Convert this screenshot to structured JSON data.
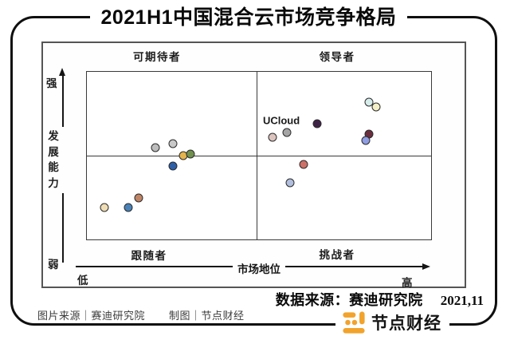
{
  "title": "2021H1中国混合云市场竞争格局",
  "chart_data": {
    "type": "scatter",
    "title": "2021H1中国混合云市场竞争格局",
    "xlabel": "市场地位",
    "ylabel": "发展能力",
    "x_axis": {
      "min_label": "低",
      "max_label": "高"
    },
    "y_axis": {
      "min_label": "弱",
      "max_label": "强"
    },
    "quadrants": {
      "top_left": "可期待者",
      "top_right": "领导者",
      "bottom_left": "跟随者",
      "bottom_right": "挑战者"
    },
    "axis_note": "qualitative axes; point coordinates normalized 0-100 (x: market position low→high, y: development capability weak→strong)",
    "annotation": {
      "text": "UCloud",
      "x": 56.5,
      "y": 71
    },
    "points": [
      {
        "x": 20,
        "y": 55,
        "color": "#bcbcbc"
      },
      {
        "x": 25,
        "y": 57,
        "color": "#c8c8c8"
      },
      {
        "x": 28,
        "y": 50,
        "color": "#e4b34d"
      },
      {
        "x": 30,
        "y": 51,
        "color": "#70904e"
      },
      {
        "x": 25,
        "y": 44,
        "color": "#2d5fa6"
      },
      {
        "x": 54,
        "y": 61,
        "color": "#dcc4be"
      },
      {
        "x": 58,
        "y": 64,
        "color": "#a5a5a5"
      },
      {
        "x": 67,
        "y": 69,
        "color": "#3f2347"
      },
      {
        "x": 82,
        "y": 82,
        "color": "#d7edeb"
      },
      {
        "x": 84,
        "y": 79,
        "color": "#f3f0c7"
      },
      {
        "x": 82,
        "y": 63,
        "color": "#6b2e3e"
      },
      {
        "x": 81,
        "y": 59,
        "color": "#8f9de2"
      },
      {
        "x": 63,
        "y": 45,
        "color": "#cd7068"
      },
      {
        "x": 59,
        "y": 34,
        "color": "#b1bedd"
      },
      {
        "x": 5,
        "y": 19,
        "color": "#eeddb4"
      },
      {
        "x": 12,
        "y": 19,
        "color": "#4a82b8"
      },
      {
        "x": 15,
        "y": 25,
        "color": "#c08566"
      }
    ]
  },
  "source": {
    "label": "数据来源：赛迪研究院",
    "date": "2021,11"
  },
  "footer": {
    "credit_image": "图片来源｜赛迪研究院",
    "credit_chart": "制图｜节点财经"
  },
  "logo": {
    "text": "节点财经",
    "color": "#f2a32b"
  }
}
